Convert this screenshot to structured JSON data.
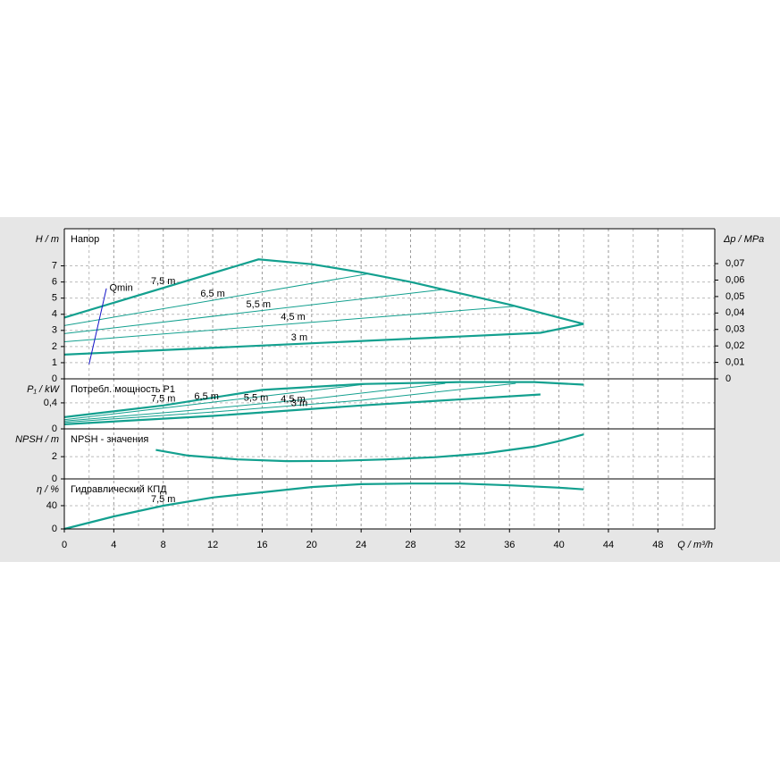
{
  "chart_data": [
    {
      "type": "line",
      "title": "Напор",
      "ylabel": "H / m",
      "y2label": "Δp / MPa",
      "ylim": [
        0,
        9.3
      ],
      "yticks": [
        0,
        1,
        2,
        3,
        4,
        5,
        6,
        7
      ],
      "y2lim": [
        0,
        0.0912
      ],
      "y2ticks": [
        0,
        {
          "value": 0.01,
          "label": "0,01"
        },
        {
          "value": 0.02,
          "label": "0,02"
        },
        {
          "value": 0.03,
          "label": "0,03"
        },
        {
          "value": 0.04,
          "label": "0,04"
        },
        {
          "value": 0.05,
          "label": "0,05"
        },
        {
          "value": 0.06,
          "label": "0,06"
        },
        {
          "value": 0.07,
          "label": "0,07"
        }
      ],
      "grid": true,
      "series": [
        {
          "name": "7,5 m",
          "color": "#13a08f",
          "x": [
            0,
            15.7,
            20,
            24,
            28,
            32,
            36,
            40,
            42
          ],
          "values": [
            3.8,
            7.4,
            7.1,
            6.6,
            6.0,
            5.3,
            4.6,
            3.8,
            3.4
          ]
        },
        {
          "name": "6,5 m",
          "color": "#13a08f",
          "x": [
            0,
            24.5
          ],
          "values": [
            3.3,
            6.5
          ]
        },
        {
          "name": "5,5 m",
          "color": "#13a08f",
          "x": [
            0,
            30.8
          ],
          "values": [
            2.8,
            5.55
          ]
        },
        {
          "name": "4,5 m",
          "color": "#13a08f",
          "x": [
            0,
            36.5
          ],
          "values": [
            2.3,
            4.5
          ]
        },
        {
          "name": "3 m",
          "color": "#13a08f",
          "x": [
            0,
            38.5,
            42
          ],
          "values": [
            1.5,
            2.85,
            3.4
          ]
        },
        {
          "name": "Qmin",
          "color": "#1010c8",
          "x": [
            2,
            3.4
          ],
          "values": [
            0.9,
            5.6
          ]
        }
      ]
    },
    {
      "type": "line",
      "title": "Потребл. мощность P1",
      "ylabel": "P₁ / kW",
      "ylim": [
        0,
        0.77
      ],
      "yticks": [
        0,
        {
          "value": 0.4,
          "label": "0,4"
        }
      ],
      "grid": true,
      "series": [
        {
          "name": "7,5 m",
          "color": "#13a08f",
          "x": [
            0,
            8,
            16,
            24,
            32,
            38,
            42
          ],
          "values": [
            0.18,
            0.36,
            0.6,
            0.69,
            0.72,
            0.72,
            0.68
          ]
        },
        {
          "name": "6,5 m",
          "color": "#13a08f",
          "x": [
            0,
            8,
            16,
            24.5
          ],
          "values": [
            0.14,
            0.32,
            0.5,
            0.69
          ]
        },
        {
          "name": "5,5 m",
          "color": "#13a08f",
          "x": [
            0,
            10,
            20,
            30.8
          ],
          "values": [
            0.12,
            0.28,
            0.46,
            0.7
          ]
        },
        {
          "name": "4,5 m",
          "color": "#13a08f",
          "x": [
            0,
            12,
            24,
            36.5
          ],
          "values": [
            0.1,
            0.26,
            0.44,
            0.7
          ]
        },
        {
          "name": "3 m",
          "color": "#13a08f",
          "x": [
            0,
            12,
            24,
            38.5
          ],
          "values": [
            0.07,
            0.2,
            0.36,
            0.53
          ]
        }
      ]
    },
    {
      "type": "line",
      "title": "NPSH - значения",
      "ylabel": "NPSH / m",
      "ylim": [
        0,
        4.5
      ],
      "yticks": [
        0,
        2
      ],
      "grid": true,
      "series": [
        {
          "color": "#13a08f",
          "x": [
            7.4,
            10,
            14,
            18,
            22,
            26,
            30,
            34,
            38,
            40,
            42
          ],
          "values": [
            2.6,
            2.1,
            1.75,
            1.6,
            1.62,
            1.75,
            1.95,
            2.3,
            2.9,
            3.4,
            4.0
          ]
        }
      ]
    },
    {
      "type": "line",
      "title": "Гидравлический КПД",
      "ylabel": "η / %",
      "ylim": [
        0,
        86
      ],
      "yticks": [
        0,
        40
      ],
      "grid": true,
      "xlabel": "Q / m³/h",
      "xlim": [
        0,
        52.6
      ],
      "xticks": [
        0,
        4,
        8,
        12,
        16,
        20,
        24,
        28,
        32,
        36,
        40,
        44,
        48
      ],
      "xminorticks": [
        2,
        6,
        10,
        14,
        18,
        22,
        26,
        30,
        34,
        38,
        42,
        46,
        50
      ],
      "series": [
        {
          "name": "7,5 m",
          "color": "#13a08f",
          "x": [
            0,
            4,
            8,
            12,
            16,
            20,
            24,
            28,
            32,
            36,
            40,
            42
          ],
          "values": [
            0,
            21.5,
            40,
            54,
            63,
            72,
            77,
            78,
            78,
            75,
            71,
            68
          ]
        }
      ]
    }
  ]
}
